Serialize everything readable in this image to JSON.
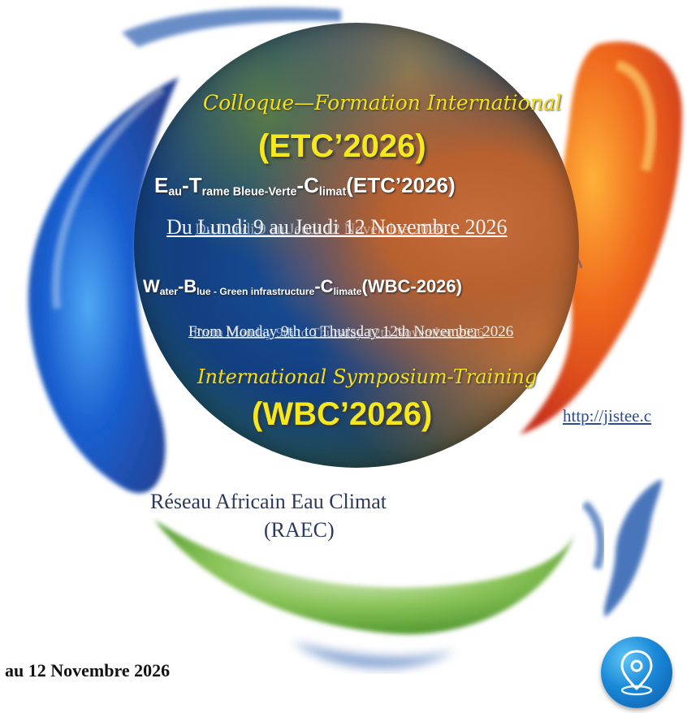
{
  "poster": {
    "script_fr": "Colloque—Formation International",
    "etc_code": "(ETC’2026)",
    "etc_title": {
      "e_big": "E",
      "e_small": "au",
      "sep1": "-",
      "t_big": "T",
      "t_small": "rame Bleue-Verte",
      "sep2": "-",
      "c_big": "C",
      "c_small": "limat",
      "tail": "(ETC’2026)"
    },
    "date_fr": "Du Lundi 9 au Jeudi 12 Novembre 2026",
    "wbc_title": {
      "w_big": "W",
      "w_small": "ater",
      "sep1": "-",
      "b_big": "B",
      "b_small": "lue - Green infrastructure",
      "sep2": "-",
      "c_big": "C",
      "c_small": "limate",
      "tail": "(WBC-2026)"
    },
    "date_en": "From Monday 9th to Thursday 12th November 2026",
    "script_en": "International Symposium-Training",
    "wbc_code": "(WBC’2026)"
  },
  "network": {
    "line1": "Réseau Africain Eau Climat",
    "line2": "(RAEC)"
  },
  "url": "http://jistee.c",
  "dates_bottom": "au 12 Novembre 2026",
  "icons": {
    "location": "location-pin-icon"
  },
  "colors": {
    "yellow": "#f7e81c",
    "blue_drop": "#1a5fd0",
    "orange_drop": "#e8561a",
    "green_drop": "#5aa02a"
  }
}
